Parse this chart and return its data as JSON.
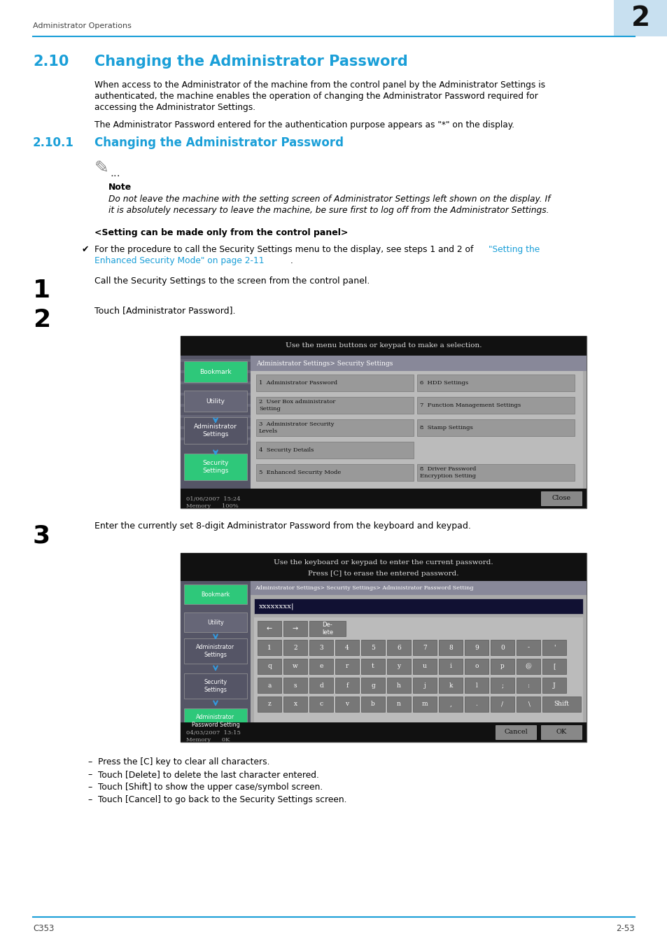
{
  "page_bg": "#ffffff",
  "header_text": "Administrator Operations",
  "header_num": "2",
  "header_num_bg": "#c8e0f0",
  "header_line_color": "#1a9fd8",
  "footer_left": "C353",
  "footer_right": "2-53",
  "footer_line_color": "#1a9fd8",
  "section_color": "#1a9fd8",
  "section_10_num": "2.10",
  "section_10_title": "Changing the Administrator Password",
  "section_101_num": "2.10.1",
  "section_101_title": "Changing the Administrator Password",
  "body_text_1a": "When access to the Administrator of the machine from the control panel by the Administrator Settings is",
  "body_text_1b": "authenticated, the machine enables the operation of changing the Administrator Password required for",
  "body_text_1c": "accessing the Administrator Settings.",
  "body_text_2": "The Administrator Password entered for the authentication purpose appears as \"*\" on the display.",
  "note_label": "Note",
  "note_text_1": "Do not leave the machine with the setting screen of Administrator Settings left shown on the display. If",
  "note_text_2": "it is absolutely necessary to leave the machine, be sure first to log off from the Administrator Settings.",
  "setting_panel_label": "<Setting can be made only from the control panel>",
  "checkmark_text": "For the procedure to call the Security Settings menu to the display, see steps 1 and 2 of ",
  "checkmark_link1": "\"Setting the",
  "checkmark_link2": "Enhanced Security Mode\" on page 2-11",
  "checkmark_end": ".",
  "step1_num": "1",
  "step1_text": "Call the Security Settings to the screen from the control panel.",
  "step2_num": "2",
  "step2_text": "Touch [Administrator Password].",
  "step3_num": "3",
  "step3_text": "Enter the currently set 8-digit Administrator Password from the keyboard and keypad.",
  "bullet_items": [
    "Press the [C] key to clear all characters.",
    "Touch [Delete] to delete the last character entered.",
    "Touch [Shift] to show the upper case/symbol screen.",
    "Touch [Cancel] to go back to the Security Settings screen."
  ],
  "link_color": "#1a9fd8",
  "body_color": "#000000",
  "ss1_top_text": "Use the menu buttons or keypad to make a selection.",
  "ss1_breadcrumb": "Administrator Settings> Security Settings",
  "ss1_items_left": [
    "1  Administrator Password",
    "2  User Box administrator\nSetting",
    "3  Administrator Security\nLevels",
    "4  Security Details",
    "5  Enhanced Security Mode"
  ],
  "ss1_items_right": [
    "6  HDD Settings",
    "7  Function Management Settings",
    "8  Stamp Settings",
    "",
    "8  Driver Password\nEncryption Setting"
  ],
  "ss1_sidebar": [
    "Bookmark",
    "Utility",
    "Administrator\nSettings",
    "Security\nSettings"
  ],
  "ss1_sidebar_active": 3,
  "ss1_footer": "01/06/2007  15:24\nMemory      100%",
  "ss2_top_text1": "Use the keyboard or keypad to enter the current password.",
  "ss2_top_text2": "Press [C] to erase the entered password.",
  "ss2_breadcrumb": "Administrator Settings> Security Settings> Administrator Password Setting",
  "ss2_password": "xxxxxxxx",
  "ss2_sidebar": [
    "Bookmark",
    "Utility",
    "Administrator\nSettings",
    "Security\nSettings",
    "Administrator\nPassword Setting"
  ],
  "ss2_sidebar_active": 4,
  "ss2_kbd_row0": [
    "<-",
    "->",
    "De-\nlete"
  ],
  "ss2_kbd_row1": [
    "1",
    "2",
    "3",
    "4",
    "5",
    "6",
    "7",
    "8",
    "9",
    "0",
    "-",
    "'"
  ],
  "ss2_kbd_row2": [
    "q",
    "w",
    "e",
    "r",
    "t",
    "y",
    "u",
    "i",
    "o",
    "p",
    "@",
    "["
  ],
  "ss2_kbd_row3": [
    "a",
    "s",
    "d",
    "f",
    "g",
    "h",
    "j",
    "k",
    "l",
    ";",
    ":",
    "J"
  ],
  "ss2_kbd_row4": [
    "z",
    "x",
    "c",
    "v",
    "b",
    "n",
    "m",
    ",",
    ".",
    "/",
    " \\",
    "Shift"
  ],
  "ss2_footer": "04/03/2007  13:15\nMemory      0K"
}
